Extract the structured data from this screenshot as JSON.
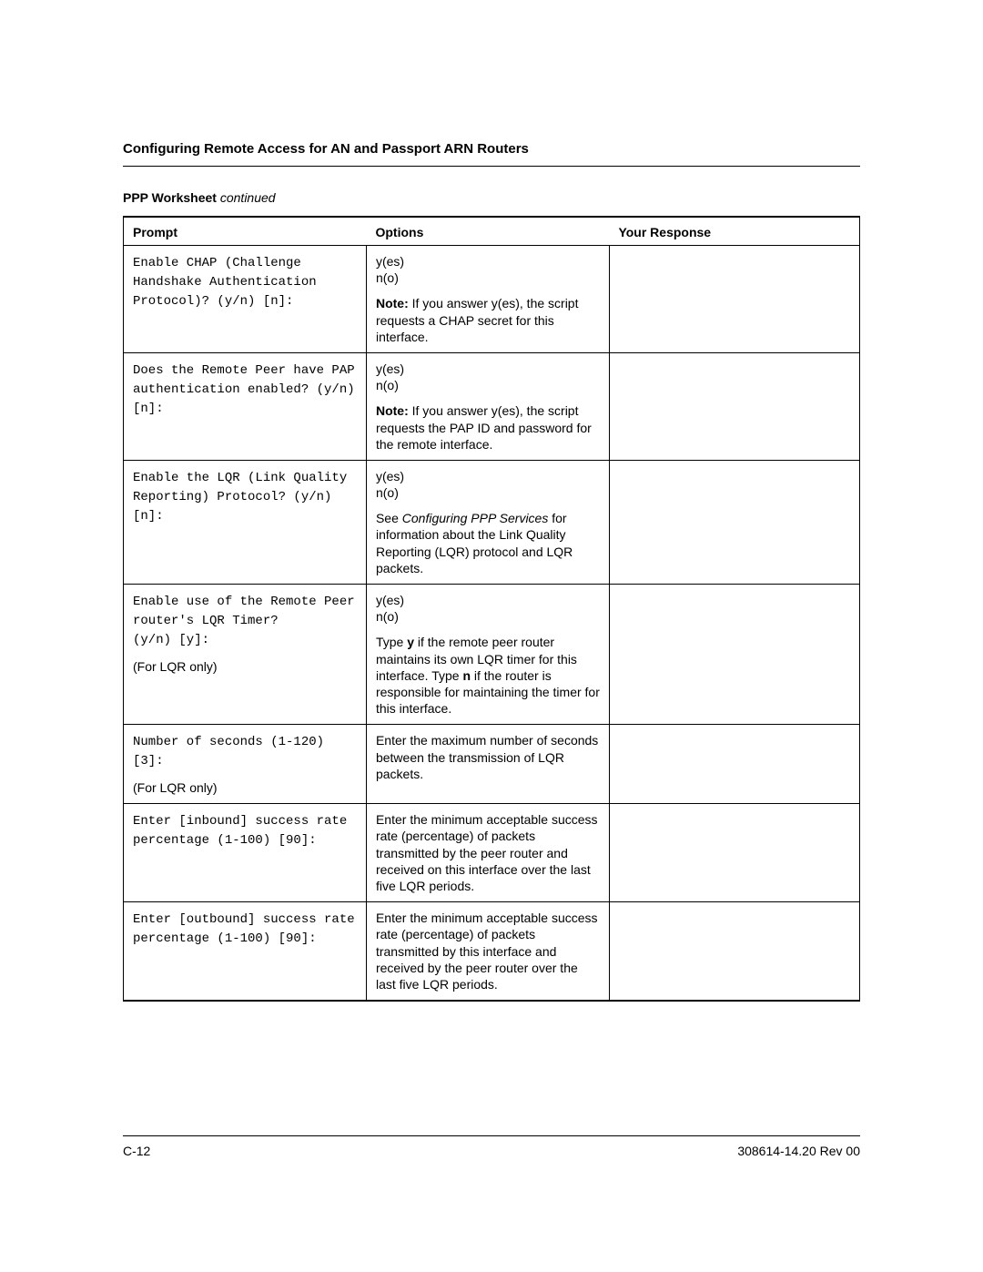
{
  "doc_title": "Configuring Remote Access for AN and Passport ARN Routers",
  "caption_bold": "PPP Worksheet ",
  "caption_italic": "continued",
  "headers": {
    "c1": "Prompt",
    "c2": "Options",
    "c3": "Your Response"
  },
  "rows": [
    {
      "prompt_mono": "Enable CHAP (Challenge Handshake Authentication Protocol)? (y/n) [n]:",
      "yes": "y(es)",
      "no": "n(o)",
      "note_lead": "Note:",
      "note_rest": " If you answer y(es), the script requests a CHAP secret for this interface."
    },
    {
      "prompt_mono": "Does the Remote Peer have PAP authentication enabled? (y/n) [n]:",
      "yes": "y(es)",
      "no": "n(o)",
      "note_lead": "Note:",
      "note_rest": " If you answer y(es), the script requests the PAP ID and password for the remote interface."
    },
    {
      "prompt_mono": "Enable the LQR (Link Quality Reporting) Protocol? (y/n) [n]:",
      "yes": "y(es)",
      "no": "n(o)",
      "see_a": "See ",
      "see_ital": "Configuring PPP Services",
      "see_b": " for information about the Link Quality Reporting (LQR) protocol and LQR packets."
    },
    {
      "prompt_mono": "Enable use of the Remote Peer router's LQR Timer?\n(y/n) [y]:",
      "prompt_extra": "(For LQR only)",
      "yes": "y(es)",
      "no": "n(o)",
      "body_a": "Type ",
      "body_y": "y",
      "body_b": " if the remote peer router maintains its own LQR timer for this interface. Type ",
      "body_n": "n",
      "body_c": " if the router is responsible for maintaining the timer for this interface."
    },
    {
      "prompt_mono": "Number of seconds (1-120) [3]:",
      "prompt_extra": "(For LQR only)",
      "body": "Enter the maximum number of seconds between the transmission of LQR packets."
    },
    {
      "prompt_mono": "Enter [inbound] success rate percentage (1-100) [90]:",
      "body": "Enter the minimum acceptable success rate (percentage) of packets transmitted by the peer router and received on this interface over the last five LQR periods."
    },
    {
      "prompt_mono": "Enter [outbound] success rate percentage (1-100) [90]:",
      "body": "Enter the minimum acceptable success rate (percentage) of packets transmitted by this interface and received by the peer router over the last five LQR periods."
    }
  ],
  "footer_left": "C-12",
  "footer_right": "308614-14.20 Rev 00"
}
